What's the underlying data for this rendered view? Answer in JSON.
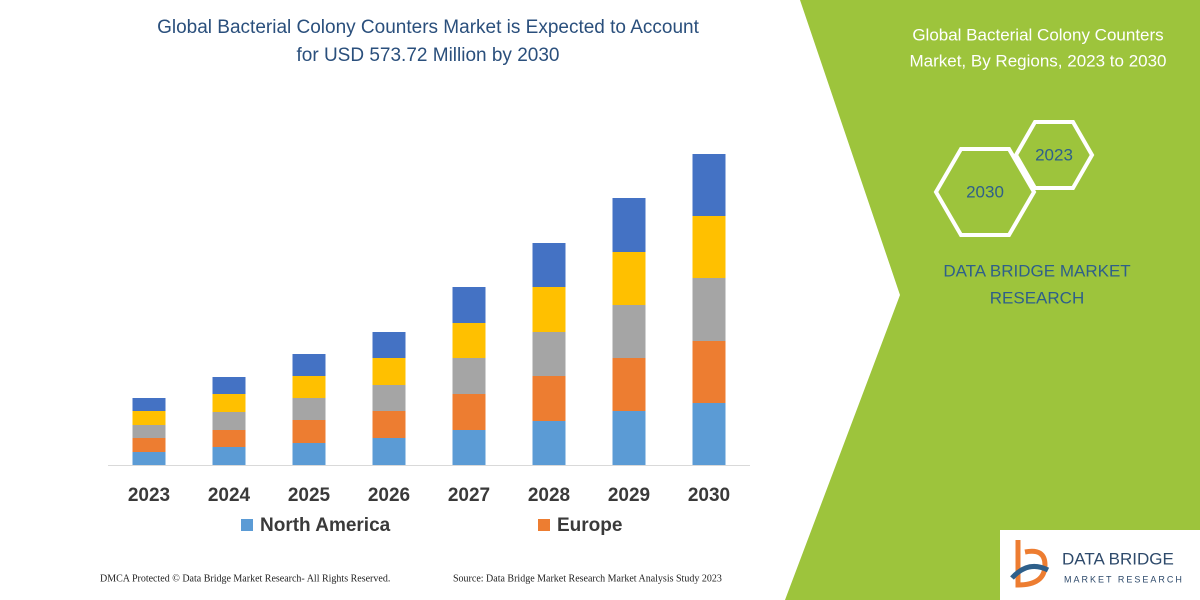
{
  "chart_data": {
    "type": "bar",
    "stacked": true,
    "title": [
      "Global Bacterial Colony Counters Market is Expected to Account",
      "for USD 573.72 Million by 2030"
    ],
    "categories": [
      "2023",
      "2024",
      "2025",
      "2026",
      "2027",
      "2028",
      "2029",
      "2030"
    ],
    "series": [
      {
        "name": "North America",
        "color": "#5b9bd5",
        "values": [
          13,
          18,
          22,
          27,
          35,
          44,
          54,
          62
        ]
      },
      {
        "name": "Europe",
        "color": "#ed7d31",
        "values": [
          14,
          17,
          23,
          27,
          36,
          45,
          53,
          62
        ]
      },
      {
        "color": "#a5a5a5",
        "values": [
          13,
          18,
          22,
          26,
          36,
          44,
          53,
          63
        ]
      },
      {
        "color": "#ffc000",
        "values": [
          14,
          18,
          22,
          27,
          35,
          45,
          53,
          62
        ]
      },
      {
        "color": "#4472c4",
        "values": [
          13,
          17,
          22,
          26,
          36,
          44,
          54,
          62
        ]
      }
    ]
  },
  "panel": {
    "title": [
      "Global Bacterial Colony Counters",
      "Market, By Regions, 2023 to 2030"
    ],
    "hexagons": [
      "2023",
      "2030"
    ],
    "brand": [
      "DATA BRIDGE MARKET",
      "RESEARCH"
    ]
  },
  "footer": {
    "copyright": "DMCA Protected © Data Bridge Market Research- All Rights Reserved.",
    "source": "Source: Data Bridge Market Research Market Analysis Study 2023"
  },
  "logo": {
    "name": "DATA BRIDGE",
    "tagline": "MARKET RESEARCH"
  }
}
